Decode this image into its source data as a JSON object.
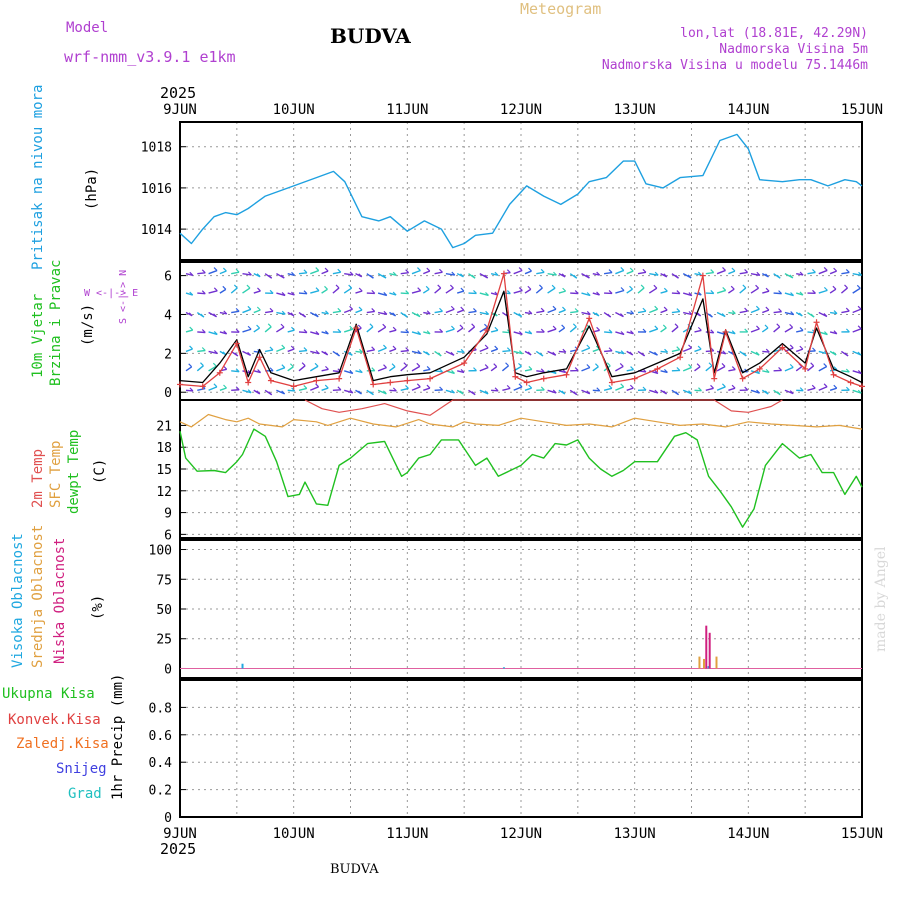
{
  "header": {
    "model_label": "Model",
    "model_name": "wrf-nmm_v3.9.1 e1km",
    "station": "BUDVA",
    "meteogram": "Meteogram",
    "lonlat": "lon,lat (18.81E, 42.29N)",
    "altitude": "Nadmorska Visina 5m",
    "model_altitude": "Nadmorska Visina u modelu 75.1446m",
    "year_top": "2025",
    "year_bottom": "2025",
    "footer_station": "BUDVA",
    "credit": "made by Angel"
  },
  "colors": {
    "pressure": "#1ea0e0",
    "wind_speed": "#000000",
    "gust": "#e04040",
    "t2m": "#e05050",
    "tsfc": "#e0a040",
    "dewpt": "#20c020",
    "cloud_high": "#20a8e0",
    "cloud_mid": "#e0a040",
    "cloud_low": "#d02080",
    "precip_total": "#20c020",
    "precip_conv": "#e04040",
    "precip_frozen": "#f07020",
    "precip_snow": "#4040e0",
    "precip_hail": "#20c0c0"
  },
  "chart_data": [
    {
      "id": "pressure",
      "type": "line",
      "ylabels": [
        "Pritisak na nivou mora",
        "(hPa)"
      ],
      "ylim": [
        1012.5,
        1019.2
      ],
      "yticks": [
        "1014",
        "1016",
        "1018"
      ],
      "x_days": [
        "9JUN",
        "10JUN",
        "11JUN",
        "12JUN",
        "13JUN",
        "14JUN",
        "15JUN"
      ],
      "series": [
        {
          "x": [
            0,
            0.1,
            0.2,
            0.3,
            0.4,
            0.5,
            0.6,
            0.75,
            0.9,
            1.0,
            1.2,
            1.35,
            1.45,
            1.6,
            1.75,
            1.85,
            2.0,
            2.15,
            2.3,
            2.4,
            2.5,
            2.6,
            2.75,
            2.9,
            3.05,
            3.2,
            3.35,
            3.5,
            3.6,
            3.75,
            3.9,
            4.0,
            4.1,
            4.25,
            4.4,
            4.6,
            4.75,
            4.9,
            5.0,
            5.1,
            5.3,
            5.45,
            5.55,
            5.7,
            5.85,
            5.95,
            6.0
          ],
          "y": [
            1013.8,
            1013.3,
            1014.0,
            1014.6,
            1014.8,
            1014.7,
            1015.0,
            1015.6,
            1015.9,
            1016.1,
            1016.5,
            1016.8,
            1016.3,
            1014.6,
            1014.4,
            1014.6,
            1013.9,
            1014.4,
            1014.0,
            1013.1,
            1013.3,
            1013.7,
            1013.8,
            1015.2,
            1016.1,
            1015.6,
            1015.2,
            1015.7,
            1016.3,
            1016.5,
            1017.3,
            1017.3,
            1016.2,
            1016.0,
            1016.5,
            1016.6,
            1018.3,
            1018.6,
            1017.9,
            1016.4,
            1016.3,
            1016.4,
            1016.4,
            1016.1,
            1016.4,
            1016.3,
            1016.1
          ]
        }
      ]
    },
    {
      "id": "wind",
      "type": "line",
      "ylabels": [
        "10m Vjetar",
        "Brzina i Pravac",
        "(m/s)"
      ],
      "compass": "W <-|-> E",
      "compass_vertical": "S <-|-> N",
      "ylim": [
        -0.4,
        6.7
      ],
      "yticks": [
        "0",
        "2",
        "4",
        "6"
      ],
      "series": [
        {
          "name": "speed",
          "x": [
            0,
            0.2,
            0.35,
            0.5,
            0.6,
            0.7,
            0.8,
            1.0,
            1.2,
            1.4,
            1.55,
            1.7,
            1.85,
            2.0,
            2.2,
            2.5,
            2.7,
            2.85,
            2.95,
            3.05,
            3.2,
            3.4,
            3.6,
            3.8,
            4.0,
            4.2,
            4.4,
            4.6,
            4.7,
            4.8,
            4.95,
            5.1,
            5.3,
            5.5,
            5.6,
            5.75,
            5.9,
            6.0
          ],
          "y": [
            0.6,
            0.5,
            1.5,
            2.7,
            0.8,
            2.2,
            1.0,
            0.6,
            0.8,
            1.0,
            3.5,
            0.6,
            0.8,
            0.9,
            1.0,
            1.8,
            3.0,
            5.2,
            1.0,
            0.8,
            1.0,
            1.2,
            3.4,
            0.8,
            1.0,
            1.5,
            2.0,
            4.8,
            1.0,
            3.2,
            1.0,
            1.5,
            2.5,
            1.5,
            3.3,
            1.2,
            0.8,
            0.5
          ]
        },
        {
          "name": "gust",
          "x": [
            0,
            0.2,
            0.35,
            0.5,
            0.6,
            0.7,
            0.8,
            1.0,
            1.2,
            1.4,
            1.55,
            1.7,
            1.85,
            2.0,
            2.2,
            2.5,
            2.7,
            2.85,
            2.95,
            3.05,
            3.2,
            3.4,
            3.6,
            3.8,
            4.0,
            4.2,
            4.4,
            4.6,
            4.7,
            4.8,
            4.95,
            5.1,
            5.3,
            5.5,
            5.6,
            5.75,
            5.9,
            6.0
          ],
          "y": [
            0.4,
            0.3,
            1.0,
            2.5,
            0.5,
            1.8,
            0.6,
            0.3,
            0.6,
            0.7,
            3.3,
            0.4,
            0.5,
            0.6,
            0.7,
            1.5,
            3.2,
            6.1,
            0.8,
            0.5,
            0.7,
            0.9,
            3.8,
            0.5,
            0.7,
            1.2,
            1.8,
            6.0,
            0.7,
            3.1,
            0.7,
            1.2,
            2.3,
            1.2,
            3.6,
            0.9,
            0.5,
            0.3
          ]
        }
      ]
    },
    {
      "id": "temperature",
      "type": "line",
      "ylabels": [
        "2m Temp",
        "SFC Temp",
        "dewpt Temp",
        "(C)"
      ],
      "ylim": [
        5.5,
        24.5
      ],
      "yticks": [
        "6",
        "9",
        "12",
        "15",
        "18",
        "21"
      ],
      "series": [
        {
          "name": "t2m",
          "x": [
            1.1,
            1.25,
            1.4,
            1.6,
            1.8,
            2.0,
            2.2,
            2.4,
            4.7,
            4.85,
            5.0,
            5.2,
            5.3
          ],
          "y": [
            24.5,
            23.3,
            22.8,
            23.3,
            24.0,
            23.0,
            22.4,
            24.5,
            24.5,
            23.0,
            22.8,
            23.6,
            24.5
          ]
        },
        {
          "name": "tsfc",
          "x": [
            0,
            0.1,
            0.25,
            0.4,
            0.5,
            0.6,
            0.7,
            0.9,
            1.0,
            1.2,
            1.3,
            1.5,
            1.7,
            1.9,
            2.1,
            2.2,
            2.4,
            2.5,
            2.6,
            2.8,
            3.0,
            3.2,
            3.4,
            3.6,
            3.8,
            4.0,
            4.2,
            4.4,
            4.6,
            4.8,
            5.0,
            5.2,
            5.4,
            5.6,
            5.8,
            6.0
          ],
          "y": [
            21.5,
            20.8,
            22.5,
            21.8,
            21.5,
            22.0,
            21.2,
            20.8,
            21.8,
            21.5,
            21.0,
            22.0,
            21.2,
            20.8,
            21.8,
            21.2,
            20.8,
            21.5,
            21.2,
            21.0,
            22.0,
            21.5,
            21.0,
            21.2,
            20.8,
            22.0,
            21.5,
            21.0,
            21.2,
            20.8,
            21.5,
            21.2,
            21.0,
            20.8,
            21.0,
            20.5
          ]
        },
        {
          "name": "dewpt",
          "x": [
            0,
            0.05,
            0.15,
            0.3,
            0.4,
            0.5,
            0.55,
            0.65,
            0.75,
            0.85,
            0.95,
            1.05,
            1.1,
            1.2,
            1.3,
            1.4,
            1.5,
            1.65,
            1.8,
            1.95,
            2.0,
            2.1,
            2.2,
            2.3,
            2.45,
            2.6,
            2.7,
            2.8,
            3.0,
            3.1,
            3.2,
            3.3,
            3.4,
            3.5,
            3.6,
            3.7,
            3.8,
            3.9,
            4.0,
            4.2,
            4.35,
            4.45,
            4.55,
            4.65,
            4.75,
            4.85,
            4.95,
            5.05,
            5.15,
            5.3,
            5.45,
            5.55,
            5.65,
            5.75,
            5.85,
            5.95,
            6.0
          ],
          "y": [
            20.2,
            16.5,
            14.7,
            14.8,
            14.5,
            16.0,
            17.0,
            20.5,
            19.5,
            16.0,
            11.2,
            11.5,
            13.2,
            10.2,
            10.0,
            15.5,
            16.5,
            18.5,
            18.8,
            14.0,
            14.5,
            16.5,
            17.0,
            19.0,
            19.0,
            15.5,
            16.5,
            14.0,
            15.5,
            17.0,
            16.5,
            18.5,
            18.3,
            19.0,
            16.5,
            15.0,
            14.0,
            14.8,
            16.0,
            16.0,
            19.5,
            20.0,
            19.0,
            14.0,
            12.0,
            9.8,
            7.0,
            9.5,
            15.5,
            18.5,
            16.5,
            17.0,
            14.5,
            14.5,
            11.5,
            14.0,
            12.5
          ]
        }
      ]
    },
    {
      "id": "clouds",
      "type": "bar",
      "ylabels": [
        "Visoka Oblacnost",
        "Srednja Oblacnost",
        "Niska Oblacnost",
        "(%)"
      ],
      "ylim": [
        -8,
        108
      ],
      "yticks": [
        "0",
        "25",
        "50",
        "75",
        "100"
      ],
      "series": [
        {
          "name": "high",
          "x": [
            0.55,
            2.85,
            4.65,
            4.72
          ],
          "values": [
            4,
            1,
            2,
            3
          ]
        },
        {
          "name": "mid",
          "x": [
            4.57,
            4.61,
            4.72
          ],
          "values": [
            10,
            8,
            10
          ]
        },
        {
          "name": "low",
          "x": [
            4.63,
            4.66
          ],
          "values": [
            36,
            30
          ]
        }
      ]
    },
    {
      "id": "precip",
      "type": "bar",
      "ylabels": [
        "1hr Precip (mm)"
      ],
      "legend": [
        "Ukupna Kisa",
        "Konvek.Kisa",
        "Zaledj.Kisa",
        "Snijeg",
        "Grad"
      ],
      "ylim": [
        0,
        1.0
      ],
      "yticks": [
        "0",
        "0.2",
        "0.4",
        "0.6",
        "0.8"
      ],
      "series": []
    }
  ]
}
